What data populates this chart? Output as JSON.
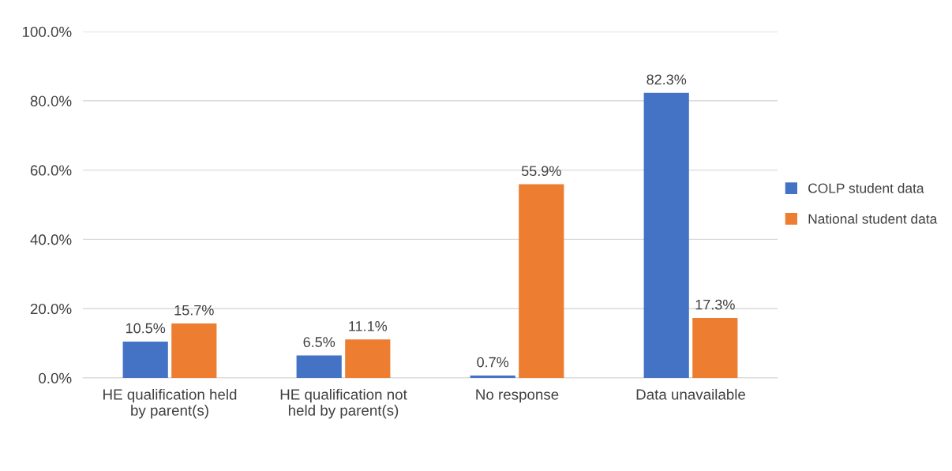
{
  "chart_data": {
    "type": "bar",
    "categories": [
      "HE qualification held\nby parent(s)",
      "HE qualification not\nheld by parent(s)",
      "No response",
      "Data unavailable"
    ],
    "series": [
      {
        "name": "COLP student data",
        "color": "#4472c4",
        "values": [
          10.5,
          6.5,
          0.7,
          82.3
        ],
        "value_labels": [
          "10.5%",
          "6.5%",
          "0.7%",
          "82.3%"
        ]
      },
      {
        "name": "National student data",
        "color": "#ed7d31",
        "values": [
          15.7,
          11.1,
          55.9,
          17.3
        ],
        "value_labels": [
          "15.7%",
          "11.1%",
          "55.9%",
          "17.3%"
        ]
      }
    ],
    "ylim": [
      0,
      100
    ],
    "yticks": [
      {
        "value": 0,
        "label": "0.0%"
      },
      {
        "value": 20,
        "label": "20.0%"
      },
      {
        "value": 40,
        "label": "40.0%"
      },
      {
        "value": 60,
        "label": "60.0%"
      },
      {
        "value": 80,
        "label": "80.0%"
      },
      {
        "value": 100,
        "label": "100.0%"
      }
    ],
    "grid": "y",
    "legend": "right"
  }
}
